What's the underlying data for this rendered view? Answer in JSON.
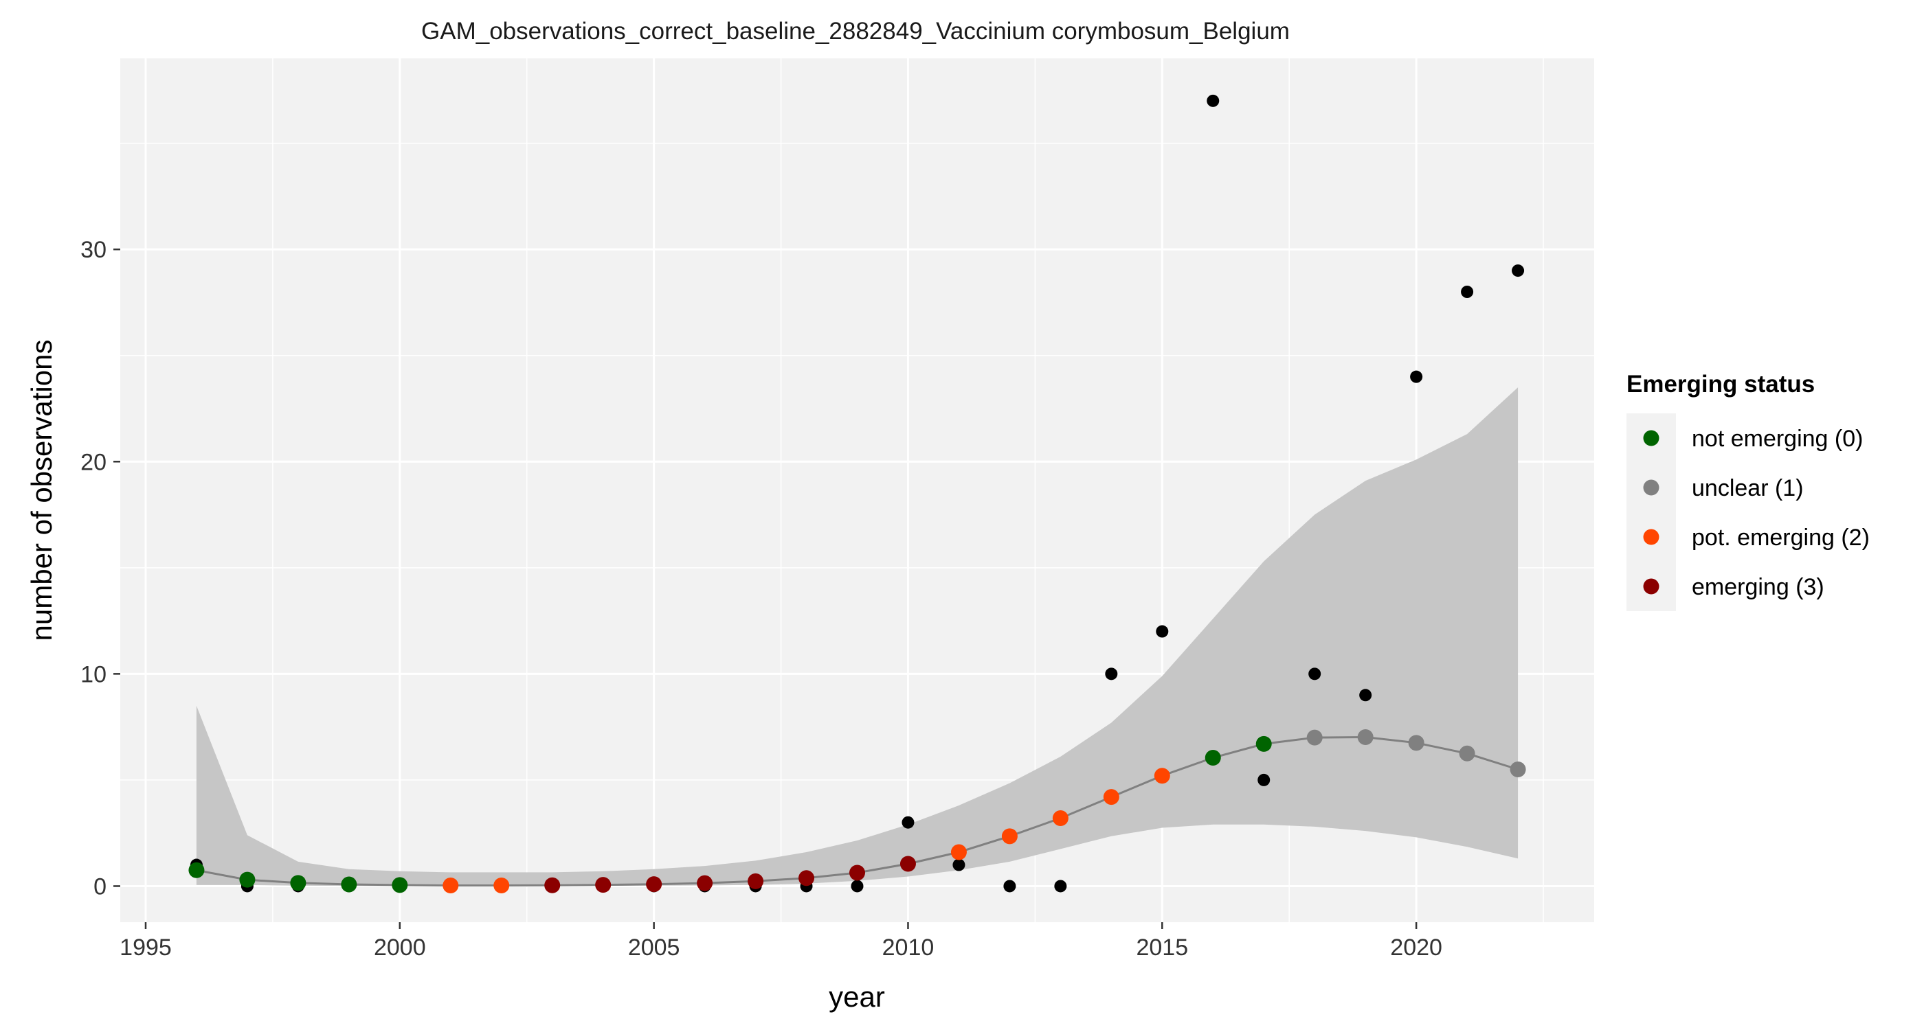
{
  "chart_data": {
    "type": "scatter",
    "title": "GAM_observations_correct_baseline_2882849_Vaccinium corymbosum_Belgium",
    "xlabel": "year",
    "ylabel": "number of observations",
    "xlim": [
      1994.5,
      2023.5
    ],
    "ylim": [
      -1.7,
      39
    ],
    "x_ticks": [
      1995,
      2000,
      2005,
      2010,
      2015,
      2020
    ],
    "y_ticks": [
      0,
      10,
      20,
      30
    ],
    "grid": true,
    "legend_position": "right",
    "observed": {
      "x": [
        1996,
        1997,
        1998,
        1999,
        2000,
        2001,
        2002,
        2003,
        2004,
        2005,
        2006,
        2007,
        2008,
        2009,
        2010,
        2011,
        2012,
        2013,
        2014,
        2015,
        2016,
        2017,
        2018,
        2019,
        2020,
        2021,
        2022
      ],
      "y": [
        1,
        0,
        0,
        0,
        0,
        0,
        0,
        0,
        0,
        0,
        0,
        0,
        0,
        0,
        3,
        1,
        0,
        0,
        10,
        12,
        37,
        5,
        10,
        9,
        24,
        28,
        29
      ]
    },
    "fitted": {
      "x": [
        1996,
        1997,
        1998,
        1999,
        2000,
        2001,
        2002,
        2003,
        2004,
        2005,
        2006,
        2007,
        2008,
        2009,
        2010,
        2011,
        2012,
        2013,
        2014,
        2015,
        2016,
        2017,
        2018,
        2019,
        2020,
        2021,
        2022
      ],
      "y": [
        0.75,
        0.3,
        0.15,
        0.08,
        0.05,
        0.03,
        0.03,
        0.04,
        0.06,
        0.09,
        0.14,
        0.23,
        0.38,
        0.63,
        1.05,
        1.6,
        2.35,
        3.2,
        4.2,
        5.2,
        6.05,
        6.7,
        7.0,
        7.02,
        6.75,
        6.25,
        5.5
      ],
      "lower": [
        0.05,
        0.05,
        0.02,
        0.01,
        0.0,
        0.0,
        0.0,
        0.0,
        0.01,
        0.02,
        0.03,
        0.06,
        0.12,
        0.25,
        0.45,
        0.75,
        1.15,
        1.75,
        2.35,
        2.75,
        2.9,
        2.9,
        2.8,
        2.6,
        2.3,
        1.85,
        1.3
      ],
      "upper": [
        8.5,
        2.4,
        1.15,
        0.8,
        0.7,
        0.65,
        0.65,
        0.65,
        0.7,
        0.8,
        0.95,
        1.2,
        1.6,
        2.15,
        2.9,
        3.8,
        4.85,
        6.1,
        7.7,
        9.9,
        12.6,
        15.3,
        17.5,
        19.1,
        20.1,
        21.3,
        23.5
      ],
      "status": [
        0,
        0,
        0,
        0,
        0,
        2,
        2,
        3,
        3,
        3,
        3,
        3,
        3,
        3,
        3,
        2,
        2,
        2,
        2,
        2,
        0,
        0,
        1,
        1,
        1,
        1,
        1
      ]
    },
    "legend": {
      "title": "Emerging status",
      "items": [
        {
          "label": "not emerging (0)",
          "color": "#006400"
        },
        {
          "label": "unclear (1)",
          "color": "#808080"
        },
        {
          "label": "pot. emerging (2)",
          "color": "#ff4500"
        },
        {
          "label": "emerging (3)",
          "color": "#8b0000"
        }
      ]
    },
    "colors": {
      "panel_background": "#f2f2f2",
      "grid_major": "#ffffff",
      "ribbon": "#c6c6c6",
      "fit_line": "#808080",
      "observed_point": "#000000"
    }
  }
}
